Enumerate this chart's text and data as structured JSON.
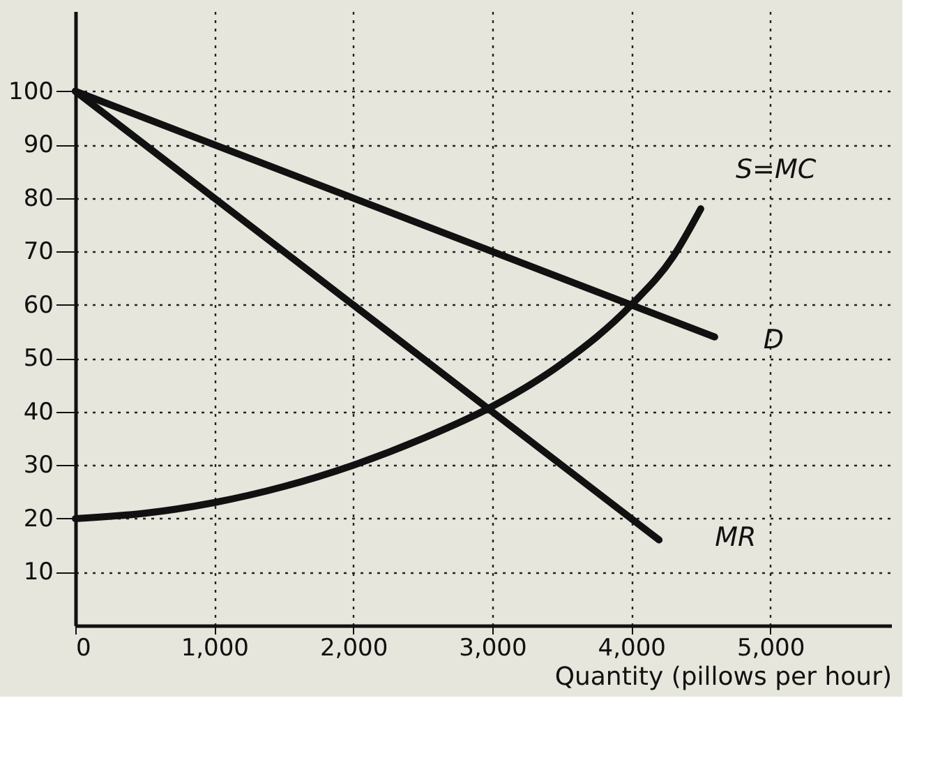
{
  "chart_data": {
    "type": "line",
    "xlabel": "Quantity (pillows per hour)",
    "xlim": [
      0,
      5870
    ],
    "ylim": [
      0,
      115
    ],
    "xticks": [
      0,
      {
        "value": 1000,
        "label": "1,000"
      },
      {
        "value": 2000,
        "label": "2,000"
      },
      {
        "value": 3000,
        "label": "3,000"
      },
      {
        "value": 4000,
        "label": "4,000"
      },
      {
        "value": 5000,
        "label": "5,000"
      }
    ],
    "yticks": [
      10,
      20,
      30,
      40,
      50,
      60,
      70,
      80,
      90,
      100
    ],
    "grid": true,
    "marker": "none",
    "line_style": "solid",
    "series": [
      {
        "name": "D",
        "color": "#111111",
        "x": [
          0,
          4600
        ],
        "values": [
          100,
          54
        ]
      },
      {
        "name": "MR",
        "color": "#111111",
        "x": [
          0,
          4200
        ],
        "values": [
          100,
          16
        ]
      },
      {
        "name": "S=MC",
        "color": "#111111",
        "x": [
          0,
          500,
          1000,
          1500,
          2000,
          2500,
          3000,
          3500,
          4000,
          4300,
          4500
        ],
        "values": [
          20,
          21,
          23,
          26,
          30,
          35,
          41,
          49,
          60,
          69,
          78
        ]
      }
    ]
  }
}
